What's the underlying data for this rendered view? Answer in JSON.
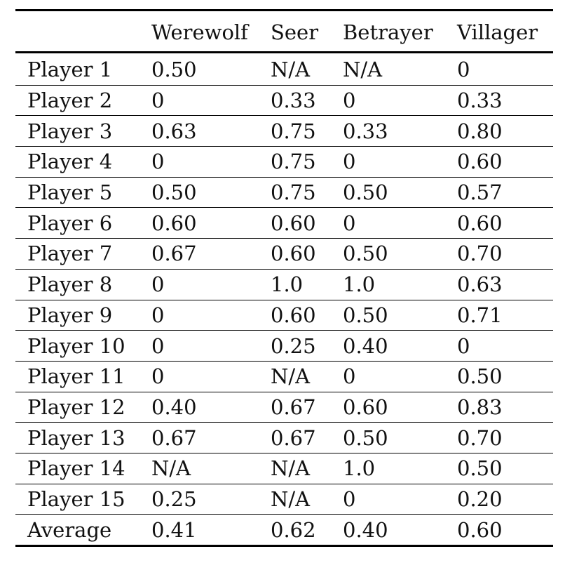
{
  "table": {
    "headers": [
      "",
      "Werewolf",
      "Seer",
      "Betrayer",
      "Villager"
    ],
    "rows": [
      [
        "Player 1",
        "0.50",
        "N/A",
        "N/A",
        "0"
      ],
      [
        "Player 2",
        "0",
        "0.33",
        "0",
        "0.33"
      ],
      [
        "Player 3",
        "0.63",
        "0.75",
        "0.33",
        "0.80"
      ],
      [
        "Player 4",
        "0",
        "0.75",
        "0",
        "0.60"
      ],
      [
        "Player 5",
        "0.50",
        "0.75",
        "0.50",
        "0.57"
      ],
      [
        "Player 6",
        "0.60",
        "0.60",
        "0",
        "0.60"
      ],
      [
        "Player 7",
        "0.67",
        "0.60",
        "0.50",
        "0.70"
      ],
      [
        "Player 8",
        "0",
        "1.0",
        "1.0",
        "0.63"
      ],
      [
        "Player 9",
        "0",
        "0.60",
        "0.50",
        "0.71"
      ],
      [
        "Player 10",
        "0",
        "0.25",
        "0.40",
        "0"
      ],
      [
        "Player 11",
        "0",
        "N/A",
        "0",
        "0.50"
      ],
      [
        "Player 12",
        "0.40",
        "0.67",
        "0.60",
        "0.83"
      ],
      [
        "Player 13",
        "0.67",
        "0.67",
        "0.50",
        "0.70"
      ],
      [
        "Player 14",
        "N/A",
        "N/A",
        "1.0",
        "0.50"
      ],
      [
        "Player 15",
        "0.25",
        "N/A",
        "0",
        "0.20"
      ],
      [
        "Average",
        "0.41",
        "0.62",
        "0.40",
        "0.60"
      ]
    ]
  }
}
